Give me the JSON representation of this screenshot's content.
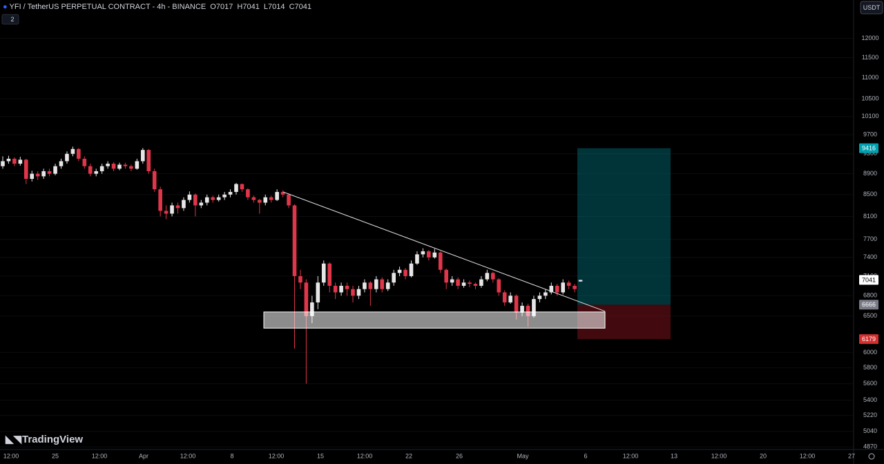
{
  "header": {
    "symbol": "YFI / TetherUS PERPETUAL CONTRACT - 4h - BINANCE",
    "o": "O",
    "h": "H",
    "l": "L",
    "c": "C",
    "indicators": "2",
    "currency": "USDT",
    "brand": "TradingView"
  },
  "chart_data": {
    "type": "candlestick",
    "log_scale": true,
    "grid": true,
    "up_color": "#e6e6e6",
    "down_color": "#e0364a",
    "ylim": [
      4850,
      13060
    ],
    "yticks": [
      12000,
      11500,
      11000,
      10500,
      10100,
      9700,
      9300,
      8900,
      8500,
      8100,
      7700,
      7400,
      7100,
      6800,
      6500,
      6000,
      5800,
      5600,
      5400,
      5220,
      5040,
      4870
    ],
    "xticks": [
      "12:00",
      "25",
      "12:00",
      "Apr",
      "12:00",
      "8",
      "12:00",
      "15",
      "12:00",
      "22",
      "26",
      "May",
      "6",
      "12:00",
      "13",
      "12:00",
      "20",
      "12:00",
      "27"
    ],
    "candles": [
      [
        9050,
        9250,
        9000,
        9150
      ],
      [
        9150,
        9260,
        9100,
        9200
      ],
      [
        9200,
        9230,
        9050,
        9100
      ],
      [
        9100,
        9240,
        9060,
        9180
      ],
      [
        9180,
        9200,
        8700,
        8800
      ],
      [
        8800,
        8960,
        8750,
        8900
      ],
      [
        8900,
        8950,
        8780,
        8850
      ],
      [
        8850,
        9000,
        8800,
        8950
      ],
      [
        8950,
        9000,
        8850,
        8900
      ],
      [
        8900,
        9100,
        8870,
        9050
      ],
      [
        9050,
        9200,
        9000,
        9150
      ],
      [
        9150,
        9350,
        9100,
        9300
      ],
      [
        9300,
        9450,
        9250,
        9400
      ],
      [
        9400,
        9420,
        9150,
        9200
      ],
      [
        9200,
        9250,
        9000,
        9050
      ],
      [
        9050,
        9100,
        8850,
        8900
      ],
      [
        8900,
        9000,
        8850,
        8950
      ],
      [
        8950,
        9100,
        8900,
        9050
      ],
      [
        9050,
        9150,
        9000,
        9100
      ],
      [
        9100,
        9130,
        8950,
        9000
      ],
      [
        9000,
        9120,
        8970,
        9080
      ],
      [
        9080,
        9120,
        9000,
        9050
      ],
      [
        9050,
        9080,
        8950,
        9000
      ],
      [
        9000,
        9200,
        8980,
        9150
      ],
      [
        9150,
        9420,
        9100,
        9380
      ],
      [
        9380,
        9400,
        8900,
        8950
      ],
      [
        8950,
        9000,
        8550,
        8600
      ],
      [
        8600,
        8650,
        8100,
        8200
      ],
      [
        8200,
        8300,
        8050,
        8150
      ],
      [
        8150,
        8350,
        8100,
        8300
      ],
      [
        8300,
        8350,
        8150,
        8250
      ],
      [
        8250,
        8450,
        8200,
        8400
      ],
      [
        8400,
        8560,
        8350,
        8500
      ],
      [
        8500,
        8520,
        8100,
        8300
      ],
      [
        8300,
        8400,
        8250,
        8350
      ],
      [
        8350,
        8500,
        8300,
        8450
      ],
      [
        8450,
        8480,
        8350,
        8400
      ],
      [
        8400,
        8500,
        8370,
        8450
      ],
      [
        8450,
        8550,
        8400,
        8500
      ],
      [
        8500,
        8600,
        8450,
        8550
      ],
      [
        8550,
        8720,
        8500,
        8700
      ],
      [
        8700,
        8710,
        8550,
        8600
      ],
      [
        8600,
        8620,
        8400,
        8450
      ],
      [
        8450,
        8480,
        8350,
        8400
      ],
      [
        8400,
        8420,
        8150,
        8350
      ],
      [
        8350,
        8500,
        8300,
        8450
      ],
      [
        8450,
        8480,
        8350,
        8400
      ],
      [
        8400,
        8600,
        8380,
        8550
      ],
      [
        8550,
        8580,
        8450,
        8500
      ],
      [
        8500,
        8520,
        8250,
        8300
      ],
      [
        8300,
        8320,
        6050,
        7100
      ],
      [
        7100,
        7200,
        6900,
        7000
      ],
      [
        7000,
        7050,
        5600,
        6500
      ],
      [
        6500,
        6800,
        6400,
        6700
      ],
      [
        6700,
        7100,
        6600,
        7000
      ],
      [
        7000,
        7350,
        6950,
        7300
      ],
      [
        7300,
        7320,
        6850,
        6950
      ],
      [
        6950,
        7000,
        6750,
        6850
      ],
      [
        6850,
        7000,
        6800,
        6950
      ],
      [
        6950,
        7000,
        6800,
        6900
      ],
      [
        6900,
        6950,
        6700,
        6800
      ],
      [
        6800,
        6950,
        6750,
        6900
      ],
      [
        6900,
        7050,
        6850,
        7000
      ],
      [
        7000,
        7020,
        6650,
        6900
      ],
      [
        6900,
        7100,
        6850,
        7050
      ],
      [
        7050,
        7080,
        6850,
        6900
      ],
      [
        6900,
        7050,
        6870,
        7000
      ],
      [
        7000,
        7200,
        6950,
        7150
      ],
      [
        7150,
        7250,
        7100,
        7200
      ],
      [
        7200,
        7230,
        7050,
        7100
      ],
      [
        7100,
        7350,
        7080,
        7300
      ],
      [
        7300,
        7500,
        7280,
        7450
      ],
      [
        7450,
        7550,
        7400,
        7500
      ],
      [
        7500,
        7520,
        7350,
        7400
      ],
      [
        7400,
        7540,
        7380,
        7480
      ],
      [
        7480,
        7500,
        7150,
        7200
      ],
      [
        7200,
        7220,
        6900,
        7000
      ],
      [
        7000,
        7100,
        6950,
        7050
      ],
      [
        7050,
        7080,
        6900,
        6950
      ],
      [
        6950,
        7050,
        6920,
        7000
      ],
      [
        7000,
        7030,
        6930,
        6980
      ],
      [
        6980,
        7000,
        6900,
        6950
      ],
      [
        6950,
        7100,
        6920,
        7050
      ],
      [
        7050,
        7200,
        7020,
        7150
      ],
      [
        7150,
        7170,
        7000,
        7050
      ],
      [
        7050,
        7070,
        6800,
        6850
      ],
      [
        6850,
        6880,
        6650,
        6700
      ],
      [
        6700,
        6850,
        6680,
        6800
      ],
      [
        6800,
        6820,
        6450,
        6550
      ],
      [
        6550,
        6700,
        6500,
        6650
      ],
      [
        6650,
        6680,
        6350,
        6500
      ],
      [
        6500,
        6800,
        6480,
        6750
      ],
      [
        6750,
        6850,
        6700,
        6800
      ],
      [
        6800,
        6900,
        6750,
        6850
      ],
      [
        6850,
        7000,
        6820,
        6950
      ],
      [
        6950,
        6980,
        6800,
        6850
      ],
      [
        6850,
        7050,
        6820,
        7000
      ],
      [
        7000,
        7030,
        6900,
        6950
      ],
      [
        6950,
        6980,
        6850,
        6900
      ],
      [
        7017,
        7041,
        7014,
        7041
      ]
    ],
    "trendline": {
      "start": 8550,
      "end": 6570
    },
    "support_zone": {
      "top": 6560,
      "bottom": 6330
    },
    "position": {
      "target": 9416,
      "entry": 6666,
      "stop": 6179
    },
    "last_price": 7041
  }
}
